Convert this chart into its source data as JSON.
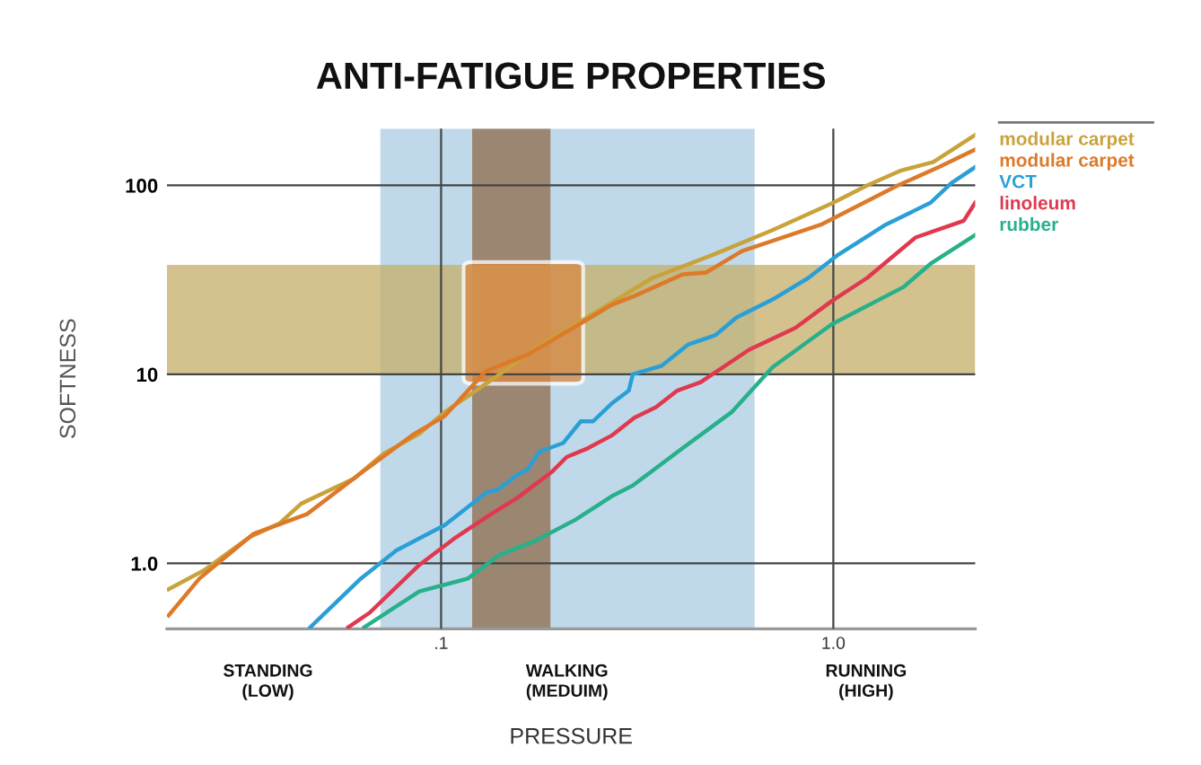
{
  "chart_data": {
    "type": "line",
    "title": "ANTI-FATIGUE PROPERTIES",
    "xlabel": "PRESSURE",
    "ylabel": "SOFTNESS",
    "log": "xy",
    "xlim": [
      0.02,
      2.3
    ],
    "ylim": [
      0.45,
      200
    ],
    "xticks": [
      {
        "value": 0.1,
        "label": ".1"
      },
      {
        "value": 1,
        "label": "1.0"
      }
    ],
    "yticks": [
      {
        "value": 1,
        "label": "1.0"
      },
      10,
      100
    ],
    "grid": true,
    "legend": "top right",
    "line_style": "solid",
    "marker": "none",
    "annotations": [
      "STANDING\n(LOW)",
      "WALKING\n(MEDUIM)",
      "RUNNING\n(HIGH)"
    ],
    "bands": [
      {
        "axis": "x",
        "from": 0.07,
        "to": 0.63,
        "color": "#a9cce3"
      },
      {
        "axis": "x",
        "from": 0.12,
        "to": 0.19,
        "color": "#8f6a4a"
      },
      {
        "axis": "y",
        "from": 10,
        "to": 38,
        "color": "#c4ae68"
      }
    ],
    "series": [
      {
        "name": "modular carpet",
        "color": "#c9a23a",
        "x": [
          0.0202,
          0.0249,
          0.0324,
          0.0388,
          0.044,
          0.06,
          0.0714,
          0.088,
          0.102,
          0.134,
          0.178,
          0.244,
          0.346,
          0.494,
          0.7,
          1.0,
          1.22,
          1.49,
          1.8,
          2.3
        ],
        "values": [
          0.73,
          0.92,
          1.37,
          1.63,
          2.07,
          2.81,
          3.81,
          4.85,
          6.3,
          9.3,
          14.1,
          20.9,
          32.4,
          43,
          58,
          81,
          100,
          120,
          133,
          185
        ]
      },
      {
        "name": "modular carpet",
        "color": "#dd7a2a",
        "x": [
          0.0202,
          0.0242,
          0.0332,
          0.0455,
          0.0624,
          0.0855,
          0.102,
          0.13,
          0.166,
          0.22,
          0.272,
          0.311,
          0.413,
          0.474,
          0.585,
          0.93,
          1.46,
          1.86,
          2.3
        ],
        "values": [
          0.53,
          0.83,
          1.43,
          1.82,
          3.0,
          4.85,
          6.0,
          10.4,
          12.7,
          17.9,
          23.3,
          26,
          33.8,
          34.6,
          44.9,
          62,
          100,
          125,
          155
        ]
      },
      {
        "name": "VCT",
        "color": "#2a9fd6",
        "x": [
          0.0464,
          0.0624,
          0.0769,
          0.102,
          0.109,
          0.13,
          0.14,
          0.156,
          0.166,
          0.178,
          0.205,
          0.227,
          0.244,
          0.272,
          0.301,
          0.308,
          0.365,
          0.427,
          0.5,
          0.567,
          0.7,
          0.864,
          1.03,
          1.36,
          1.77,
          2.0,
          2.3
        ],
        "values": [
          0.459,
          0.83,
          1.17,
          1.59,
          1.77,
          2.36,
          2.46,
          2.93,
          3.13,
          3.89,
          4.34,
          5.64,
          5.64,
          7.0,
          8.2,
          10,
          11.1,
          14.4,
          16.1,
          20,
          24.9,
          32.4,
          43,
          62,
          81,
          103,
          125
        ]
      },
      {
        "name": "linoleum",
        "color": "#e0394f",
        "x": [
          0.058,
          0.0657,
          0.088,
          0.109,
          0.134,
          0.156,
          0.192,
          0.209,
          0.237,
          0.272,
          0.311,
          0.353,
          0.4,
          0.459,
          0.61,
          0.8,
          0.99,
          1.22,
          1.62,
          2.15,
          2.3
        ],
        "values": [
          0.459,
          0.547,
          0.98,
          1.37,
          1.82,
          2.21,
          3.06,
          3.65,
          4.07,
          4.74,
          5.9,
          6.7,
          8.2,
          9.1,
          13.5,
          17.6,
          24.4,
          32.4,
          53,
          65,
          81
        ]
      },
      {
        "name": "rubber",
        "color": "#27b08a",
        "x": [
          0.0637,
          0.088,
          0.117,
          0.14,
          0.173,
          0.22,
          0.272,
          0.308,
          0.413,
          0.55,
          0.7,
          0.99,
          1.51,
          1.77,
          2.3
        ],
        "values": [
          0.459,
          0.71,
          0.83,
          1.1,
          1.31,
          1.7,
          2.26,
          2.58,
          4.07,
          6.3,
          10.9,
          18.4,
          29,
          38.5,
          54.6
        ]
      }
    ]
  }
}
